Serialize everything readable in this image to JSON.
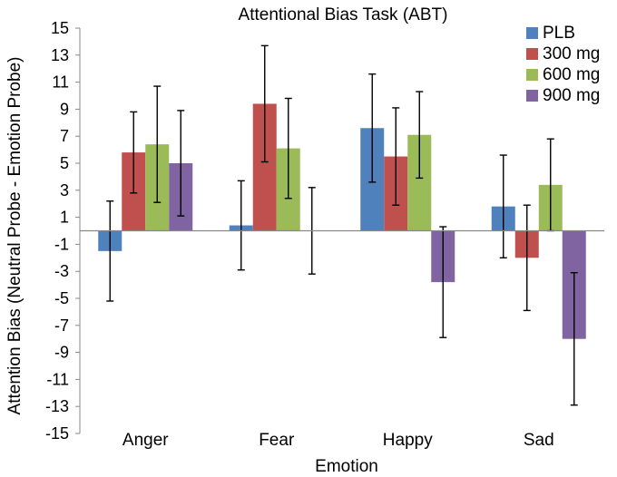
{
  "chart_data": {
    "type": "bar",
    "title": "Attentional Bias Task (ABT)",
    "xlabel": "Emotion",
    "ylabel": "Attention Bias (Neutral Probe - Emotion Probe)",
    "categories": [
      "Anger",
      "Fear",
      "Happy",
      "Sad"
    ],
    "ylim": [
      -15,
      15
    ],
    "yticks": [
      15,
      13,
      11,
      9,
      7,
      5,
      3,
      1,
      -1,
      -3,
      -5,
      -7,
      -9,
      -11,
      -13,
      -15
    ],
    "grid": false,
    "legend_position": "top-right",
    "series": [
      {
        "name": "PLB",
        "color": "#4f81bd",
        "values": [
          -1.5,
          0.4,
          7.6,
          1.8
        ],
        "error": [
          3.7,
          3.3,
          4.0,
          3.8
        ]
      },
      {
        "name": "300 mg",
        "color": "#c0504d",
        "values": [
          5.8,
          9.4,
          5.5,
          -2.0
        ],
        "error": [
          3.0,
          4.3,
          3.6,
          3.9
        ]
      },
      {
        "name": "600 mg",
        "color": "#9bbb59",
        "values": [
          6.4,
          6.1,
          7.1,
          3.4
        ],
        "error": [
          4.3,
          3.7,
          3.2,
          3.4
        ]
      },
      {
        "name": "900 mg",
        "color": "#8064a2",
        "values": [
          5.0,
          0.0,
          -3.8,
          -8.0
        ],
        "error": [
          3.9,
          3.2,
          4.1,
          4.9
        ]
      }
    ]
  }
}
